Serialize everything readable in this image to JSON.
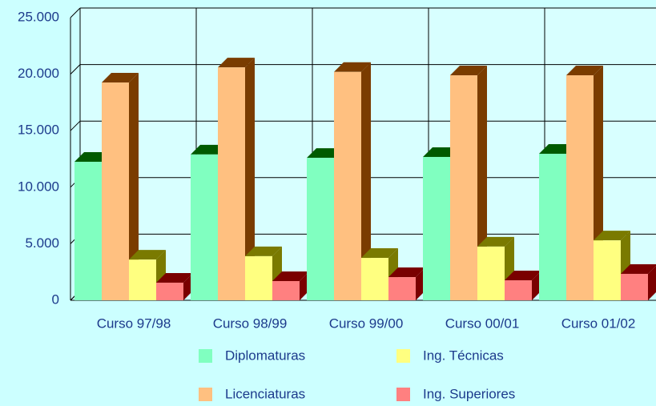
{
  "chart_data": {
    "type": "bar3d",
    "categories": [
      "Curso 97/98",
      "Curso 98/99",
      "Curso 99/00",
      "Curso 00/01",
      "Curso 01/02"
    ],
    "series": [
      {
        "name": "Diplomaturas",
        "color": "#80ffc0",
        "depth_color": "#005a00",
        "values": [
          12250,
          12900,
          12600,
          12680,
          12960
        ]
      },
      {
        "name": "Licenciaturas",
        "color": "#ffc080",
        "depth_color": "#7a3c00",
        "values": [
          19260,
          20600,
          20200,
          19900,
          19900
        ]
      },
      {
        "name": "Ing. Técnicas",
        "color": "#ffff80",
        "depth_color": "#7a7a00",
        "values": [
          3600,
          3900,
          3750,
          4750,
          5300
        ]
      },
      {
        "name": "Ing. Superiores",
        "color": "#ff8080",
        "depth_color": "#7a0000",
        "values": [
          1560,
          1700,
          2050,
          1770,
          2340
        ]
      }
    ],
    "ylim": [
      0,
      25000
    ],
    "yticks": [
      0,
      {
        "value": 5000,
        "label": "5.000"
      },
      {
        "value": 10000,
        "label": "10.000"
      },
      {
        "value": 15000,
        "label": "15.000"
      },
      {
        "value": 20000,
        "label": "20.000"
      },
      {
        "value": 25000,
        "label": "25.000"
      }
    ],
    "grid": true
  }
}
